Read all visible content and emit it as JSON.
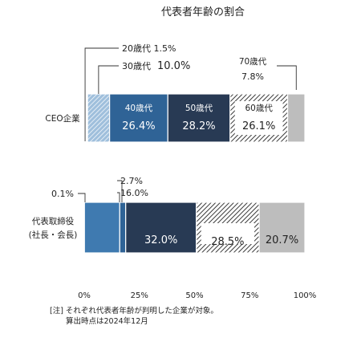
{
  "chart_data": {
    "type": "stacked-bar-horizontal",
    "title": "代表者年齢の割合",
    "x_ticks": [
      "0%",
      "25%",
      "50%",
      "75%",
      "100%"
    ],
    "xlim": [
      0,
      100
    ],
    "categories": [
      "CEO企業",
      "代表取締役\n(社長・会長)"
    ],
    "category_lines": [
      [
        "CEO企業"
      ],
      [
        "代表取締役",
        "(社長・会長)"
      ]
    ],
    "series": [
      {
        "name": "20歳代",
        "values": [
          1.5,
          0.1
        ],
        "color": "#a9c7e2",
        "pattern": "diag-light"
      },
      {
        "name": "30歳代",
        "values": [
          10.0,
          16.0
        ],
        "color": "#4a84b7",
        "pattern": "diag-light"
      },
      {
        "name": "40歳代",
        "values": [
          26.4,
          2.7
        ],
        "color": "#2f6396",
        "pattern": "solid"
      },
      {
        "name": "50歳代",
        "values": [
          28.2,
          32.0
        ],
        "color": "#283a54",
        "pattern": "solid"
      },
      {
        "name": "60歳代",
        "values": [
          26.1,
          28.5
        ],
        "color": "#555555",
        "pattern": "hatch-dark"
      },
      {
        "name": "70歳代",
        "values": [
          7.8,
          20.7
        ],
        "color": "#bdbdbd",
        "pattern": "solid"
      }
    ],
    "labels": {
      "ceo_20": "20歳代 1.5%",
      "ceo_30_prefix": "30歳代",
      "ceo_30_value": "10.0%",
      "ceo_70_name": "70歳代",
      "ceo_70_value": "7.8%",
      "ceo_40_name": "40歳代",
      "ceo_40_value": "26.4%",
      "ceo_50_name": "50歳代",
      "ceo_50_value": "28.2%",
      "ceo_60_name": "60歳代",
      "ceo_60_value": "26.1%",
      "rep_20": "0.1%",
      "rep_40": "2.7%",
      "rep_30": "16.0%",
      "rep_50": "32.0%",
      "rep_60": "28.5%",
      "rep_70": "20.7%"
    }
  },
  "note": {
    "line1": "[注] それぞれ代表者年齢が判明した企業が対象。",
    "line2": "算出時点は2024年12月"
  }
}
